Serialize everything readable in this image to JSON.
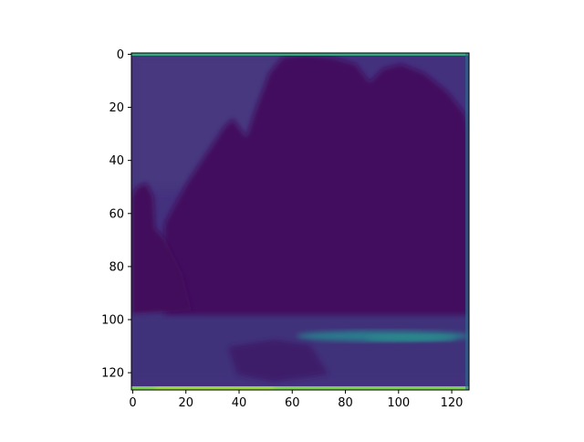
{
  "chart_data": {
    "type": "heatmap",
    "title": "",
    "xlabel": "",
    "ylabel": "",
    "colormap": "viridis",
    "image_shape": [
      127,
      127
    ],
    "xlim": [
      -0.5,
      126.5
    ],
    "ylim": [
      126.5,
      -0.5
    ],
    "x_ticks": [
      0,
      20,
      40,
      60,
      80,
      100,
      120
    ],
    "y_ticks": [
      0,
      20,
      40,
      60,
      80,
      100,
      120
    ],
    "x_tick_labels": [
      "0",
      "20",
      "40",
      "60",
      "80",
      "100",
      "120"
    ],
    "y_tick_labels": [
      "0",
      "20",
      "40",
      "60",
      "80",
      "100",
      "120"
    ],
    "grid": false,
    "description_features": {
      "top_edge_row": "teal-green line at row 0",
      "bottom_edge_row": "yellow-green bright line at row 126",
      "bright_band": "teal horizontal band near rows 104-110, x 60-115",
      "dark_silhouette": "dark purple mountain-like shape spanning x 20-126, rows 0-100"
    },
    "colors": {
      "dark": "#440154",
      "mid_dark": "#46337e",
      "mid": "#3b528b",
      "teal": "#21918c",
      "green": "#5ec962",
      "yellow": "#fde725"
    }
  }
}
